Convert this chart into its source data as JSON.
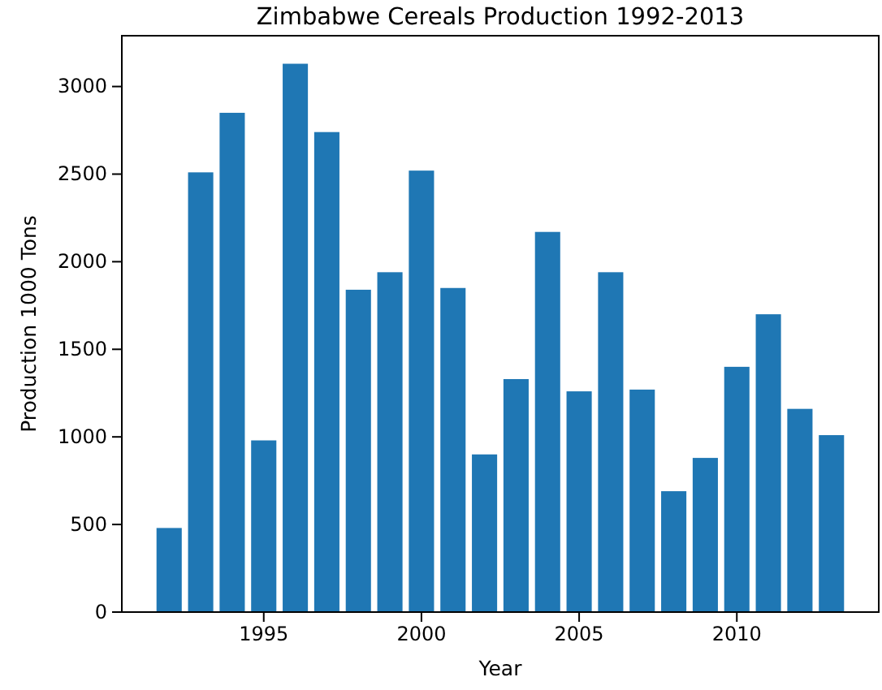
{
  "chart_data": {
    "type": "bar",
    "title": "Zimbabwe Cereals Production 1992-2013",
    "xlabel": "Year",
    "ylabel": "Production 1000 Tons",
    "x": [
      1992,
      1993,
      1994,
      1995,
      1996,
      1997,
      1998,
      1999,
      2000,
      2001,
      2002,
      2003,
      2004,
      2005,
      2006,
      2007,
      2008,
      2009,
      2010,
      2011,
      2012,
      2013
    ],
    "values": [
      480,
      2510,
      2850,
      980,
      3130,
      2740,
      1840,
      1940,
      2520,
      1850,
      900,
      1330,
      2170,
      1260,
      1940,
      1270,
      690,
      880,
      1400,
      1700,
      1160,
      1010
    ],
    "color": "#1f77b4",
    "xlim": [
      1990.5,
      2014.5
    ],
    "ylim": [
      0,
      3290
    ],
    "xticks": [
      1995,
      2000,
      2005,
      2010
    ],
    "yticks": [
      0,
      500,
      1000,
      1500,
      2000,
      2500,
      3000
    ],
    "grid": false
  }
}
